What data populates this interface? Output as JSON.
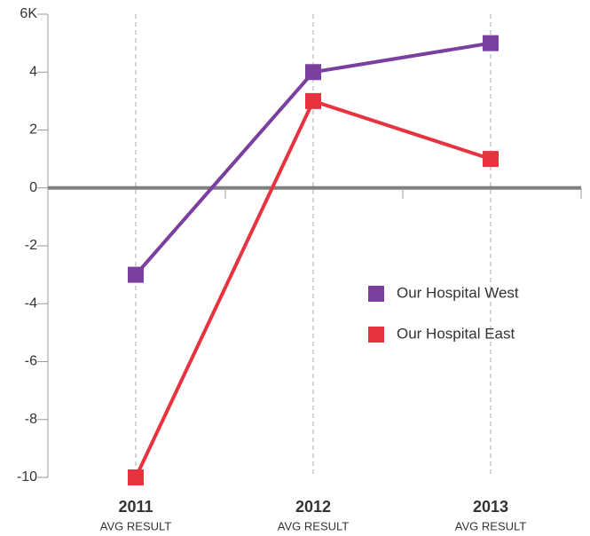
{
  "chart_data": {
    "type": "line",
    "categories": [
      "2011",
      "2012",
      "2013"
    ],
    "category_sublabels": [
      "AVG RESULT",
      "AVG RESULT",
      "AVG RESULT"
    ],
    "series": [
      {
        "name": "Our Hospital West",
        "color": "#7b3fa0",
        "values": [
          -3,
          4,
          5
        ]
      },
      {
        "name": "Our Hospital East",
        "color": "#e8333f",
        "values": [
          -10,
          3,
          1
        ]
      }
    ],
    "ylim": [
      -10,
      6
    ],
    "yticks": [
      -10,
      -8,
      -6,
      -4,
      -2,
      0,
      2,
      4,
      {
        "value": 6,
        "label": "6K"
      }
    ],
    "grid": false,
    "legend": "right"
  }
}
